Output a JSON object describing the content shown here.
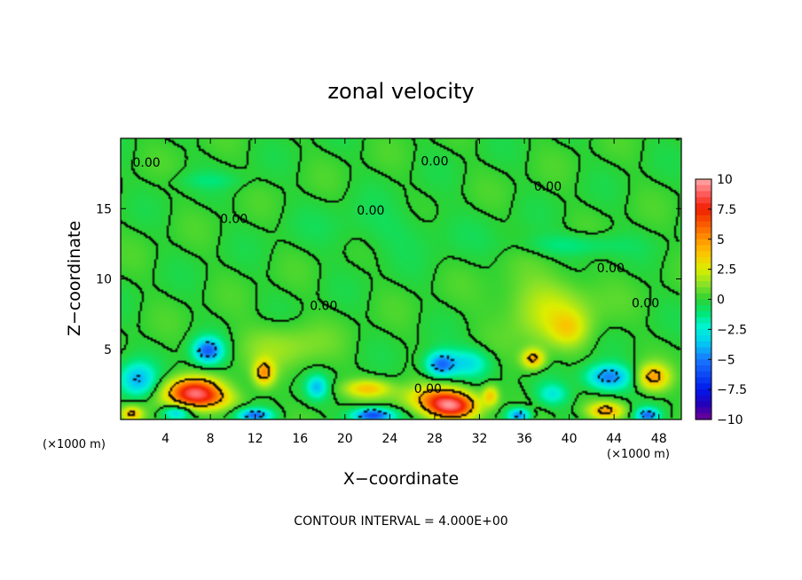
{
  "chart_data": {
    "type": "heatmap",
    "title": "zonal velocity",
    "xlabel": "X−coordinate",
    "ylabel": "Z−coordinate",
    "x_unit": "(×1000 m)",
    "y_unit": "(×1000 m)",
    "xlim": [
      0,
      50
    ],
    "ylim": [
      0,
      20
    ],
    "x_ticks": [
      4,
      8,
      12,
      16,
      20,
      24,
      28,
      32,
      36,
      40,
      44,
      48
    ],
    "x_tick_labels": [
      "4",
      "8",
      "12",
      "16",
      "20",
      "24",
      "28",
      "32",
      "36",
      "40",
      "44",
      "48"
    ],
    "y_ticks": [
      5,
      10,
      15
    ],
    "y_tick_labels": [
      "5",
      "10",
      "15"
    ],
    "colorbar": {
      "min": -10,
      "max": 10,
      "ticks": [
        10,
        7.5,
        5,
        2.5,
        0,
        -2.5,
        -5,
        -7.5,
        -10
      ],
      "tick_labels": [
        "10",
        "7.5",
        "5",
        "2.5",
        "0",
        "−2.5",
        "−5",
        "−7.5",
        "−10"
      ]
    },
    "contour_interval_text": "CONTOUR INTERVAL = 4.000E+00",
    "contour_labels": [
      {
        "text": "0.00",
        "x": 2.3,
        "z": 18.3
      },
      {
        "text": "0.00",
        "x": 28.0,
        "z": 18.4
      },
      {
        "text": "0.00",
        "x": 38.1,
        "z": 16.6
      },
      {
        "text": "0.00",
        "x": 10.1,
        "z": 14.3
      },
      {
        "text": "0.00",
        "x": 22.3,
        "z": 14.9
      },
      {
        "text": "0.00",
        "x": 43.7,
        "z": 10.8
      },
      {
        "text": "0.00",
        "x": 18.1,
        "z": 8.1
      },
      {
        "text": "0.00",
        "x": 46.8,
        "z": 8.3
      },
      {
        "text": "0.00",
        "x": 27.4,
        "z": 2.2
      }
    ],
    "features": [
      {
        "x": 6.5,
        "z": 2.1,
        "value": 6.5,
        "sx": 2.4,
        "sz": 0.9
      },
      {
        "x": 7.2,
        "z": 1.4,
        "value": 4.0,
        "sx": 3.0,
        "sz": 0.8
      },
      {
        "x": 29.5,
        "z": 0.9,
        "value": 8.0,
        "sx": 2.3,
        "sz": 0.9
      },
      {
        "x": 28.0,
        "z": 1.6,
        "value": 3.5,
        "sx": 3.0,
        "sz": 0.9
      },
      {
        "x": 12.8,
        "z": 3.3,
        "value": 4.5,
        "sx": 0.9,
        "sz": 0.9
      },
      {
        "x": 36.8,
        "z": 4.3,
        "value": 4.5,
        "sx": 1.0,
        "sz": 0.7
      },
      {
        "x": 47.5,
        "z": 3.0,
        "value": 4.5,
        "sx": 1.4,
        "sz": 0.9
      },
      {
        "x": 43.3,
        "z": 0.6,
        "value": 4.5,
        "sx": 1.6,
        "sz": 0.6
      },
      {
        "x": 22.0,
        "z": 2.2,
        "value": 3.5,
        "sx": 2.0,
        "sz": 0.6
      },
      {
        "x": 33.0,
        "z": 1.7,
        "value": 3.5,
        "sx": 0.7,
        "sz": 0.7
      },
      {
        "x": 38.2,
        "z": 7.8,
        "value": 2.2,
        "sx": 4.0,
        "sz": 2.4
      },
      {
        "x": 40.0,
        "z": 6.4,
        "value": 2.0,
        "sx": 1.6,
        "sz": 1.2
      },
      {
        "x": 1.0,
        "z": 0.4,
        "value": 4.0,
        "sx": 0.9,
        "sz": 0.5
      },
      {
        "x": 14.5,
        "z": 5.2,
        "value": 1.4,
        "sx": 4.0,
        "sz": 1.6
      },
      {
        "x": 7.8,
        "z": 4.9,
        "value": -5.5,
        "sx": 1.3,
        "sz": 0.9
      },
      {
        "x": 28.5,
        "z": 3.9,
        "value": -5.0,
        "sx": 1.3,
        "sz": 0.9
      },
      {
        "x": 43.5,
        "z": 3.0,
        "value": -5.0,
        "sx": 2.0,
        "sz": 0.9
      },
      {
        "x": 22.5,
        "z": 0.3,
        "value": -6.5,
        "sx": 1.8,
        "sz": 0.5
      },
      {
        "x": 12.0,
        "z": 0.3,
        "value": -5.0,
        "sx": 1.5,
        "sz": 0.45
      },
      {
        "x": 35.5,
        "z": 0.3,
        "value": -5.0,
        "sx": 1.0,
        "sz": 0.5
      },
      {
        "x": 47.0,
        "z": 0.3,
        "value": -5.0,
        "sx": 1.0,
        "sz": 0.5
      },
      {
        "x": 1.5,
        "z": 2.8,
        "value": -4.0,
        "sx": 1.6,
        "sz": 1.2
      },
      {
        "x": 17.5,
        "z": 2.3,
        "value": -3.5,
        "sx": 0.9,
        "sz": 0.8
      },
      {
        "x": 31.0,
        "z": 4.0,
        "value": -3.0,
        "sx": 2.0,
        "sz": 1.0
      },
      {
        "x": 5.0,
        "z": 0.5,
        "value": -3.5,
        "sx": 1.2,
        "sz": 0.5
      },
      {
        "x": 38.5,
        "z": 1.8,
        "value": -2.5,
        "sx": 1.4,
        "sz": 0.8
      },
      {
        "x": 40.5,
        "z": 12.4,
        "value": -1.4,
        "sx": 4.5,
        "sz": 0.8
      },
      {
        "x": 24.0,
        "z": 13.5,
        "value": -0.6,
        "sx": 7.0,
        "sz": 1.8
      },
      {
        "x": 8.0,
        "z": 17.0,
        "value": -0.8,
        "sx": 3.0,
        "sz": 0.6
      }
    ]
  }
}
